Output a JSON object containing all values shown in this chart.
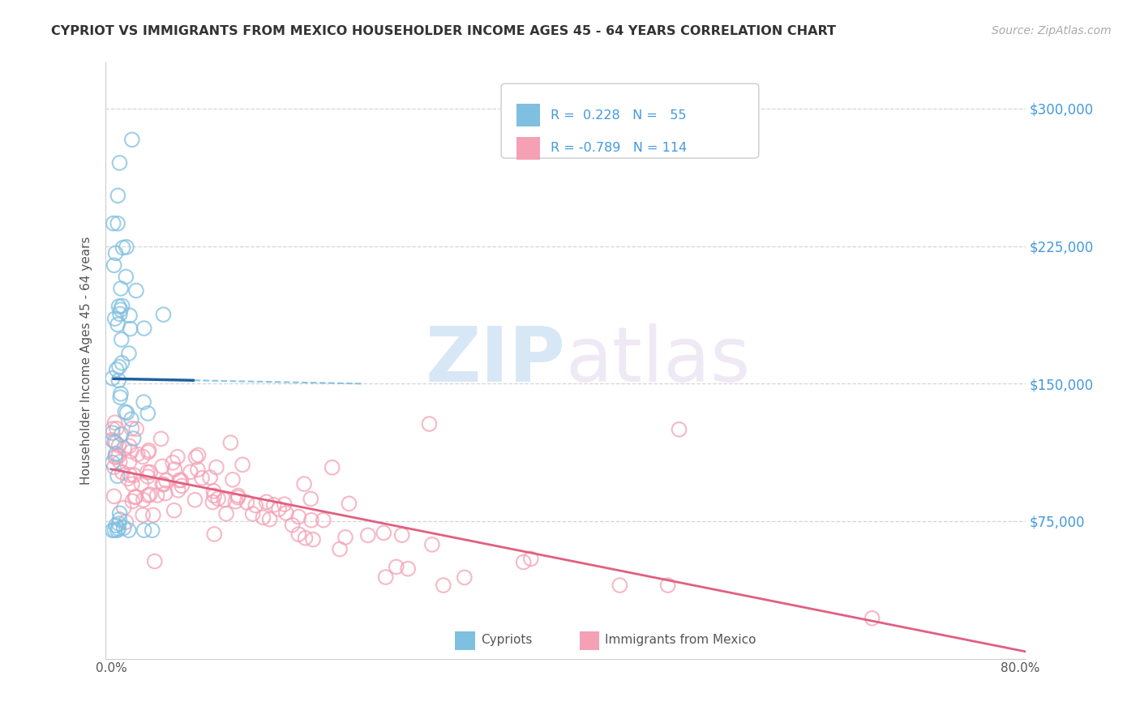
{
  "title": "CYPRIOT VS IMMIGRANTS FROM MEXICO HOUSEHOLDER INCOME AGES 45 - 64 YEARS CORRELATION CHART",
  "source": "Source: ZipAtlas.com",
  "ylabel": "Householder Income Ages 45 - 64 years",
  "xlim": [
    -0.005,
    0.805
  ],
  "ylim": [
    0,
    325000
  ],
  "yticks": [
    75000,
    150000,
    225000,
    300000
  ],
  "ytick_labels": [
    "$75,000",
    "$150,000",
    "$225,000",
    "$300,000"
  ],
  "xticks": [
    0.0,
    0.1,
    0.2,
    0.3,
    0.4,
    0.5,
    0.6,
    0.7,
    0.8
  ],
  "xtick_labels": [
    "0.0%",
    "",
    "",
    "",
    "",
    "",
    "",
    "",
    "80.0%"
  ],
  "blue_color": "#7fbfdf",
  "pink_color": "#f4a0b5",
  "blue_line_color": "#2060a0",
  "pink_line_color": "#e06080",
  "blue_r": 0.228,
  "blue_n": 55,
  "pink_r": -0.789,
  "pink_n": 114,
  "watermark_zip": "ZIP",
  "watermark_atlas": "atlas",
  "background_color": "#ffffff",
  "grid_color": "#cccccc",
  "legend_color": "#4499dd",
  "ytick_color": "#4499dd"
}
